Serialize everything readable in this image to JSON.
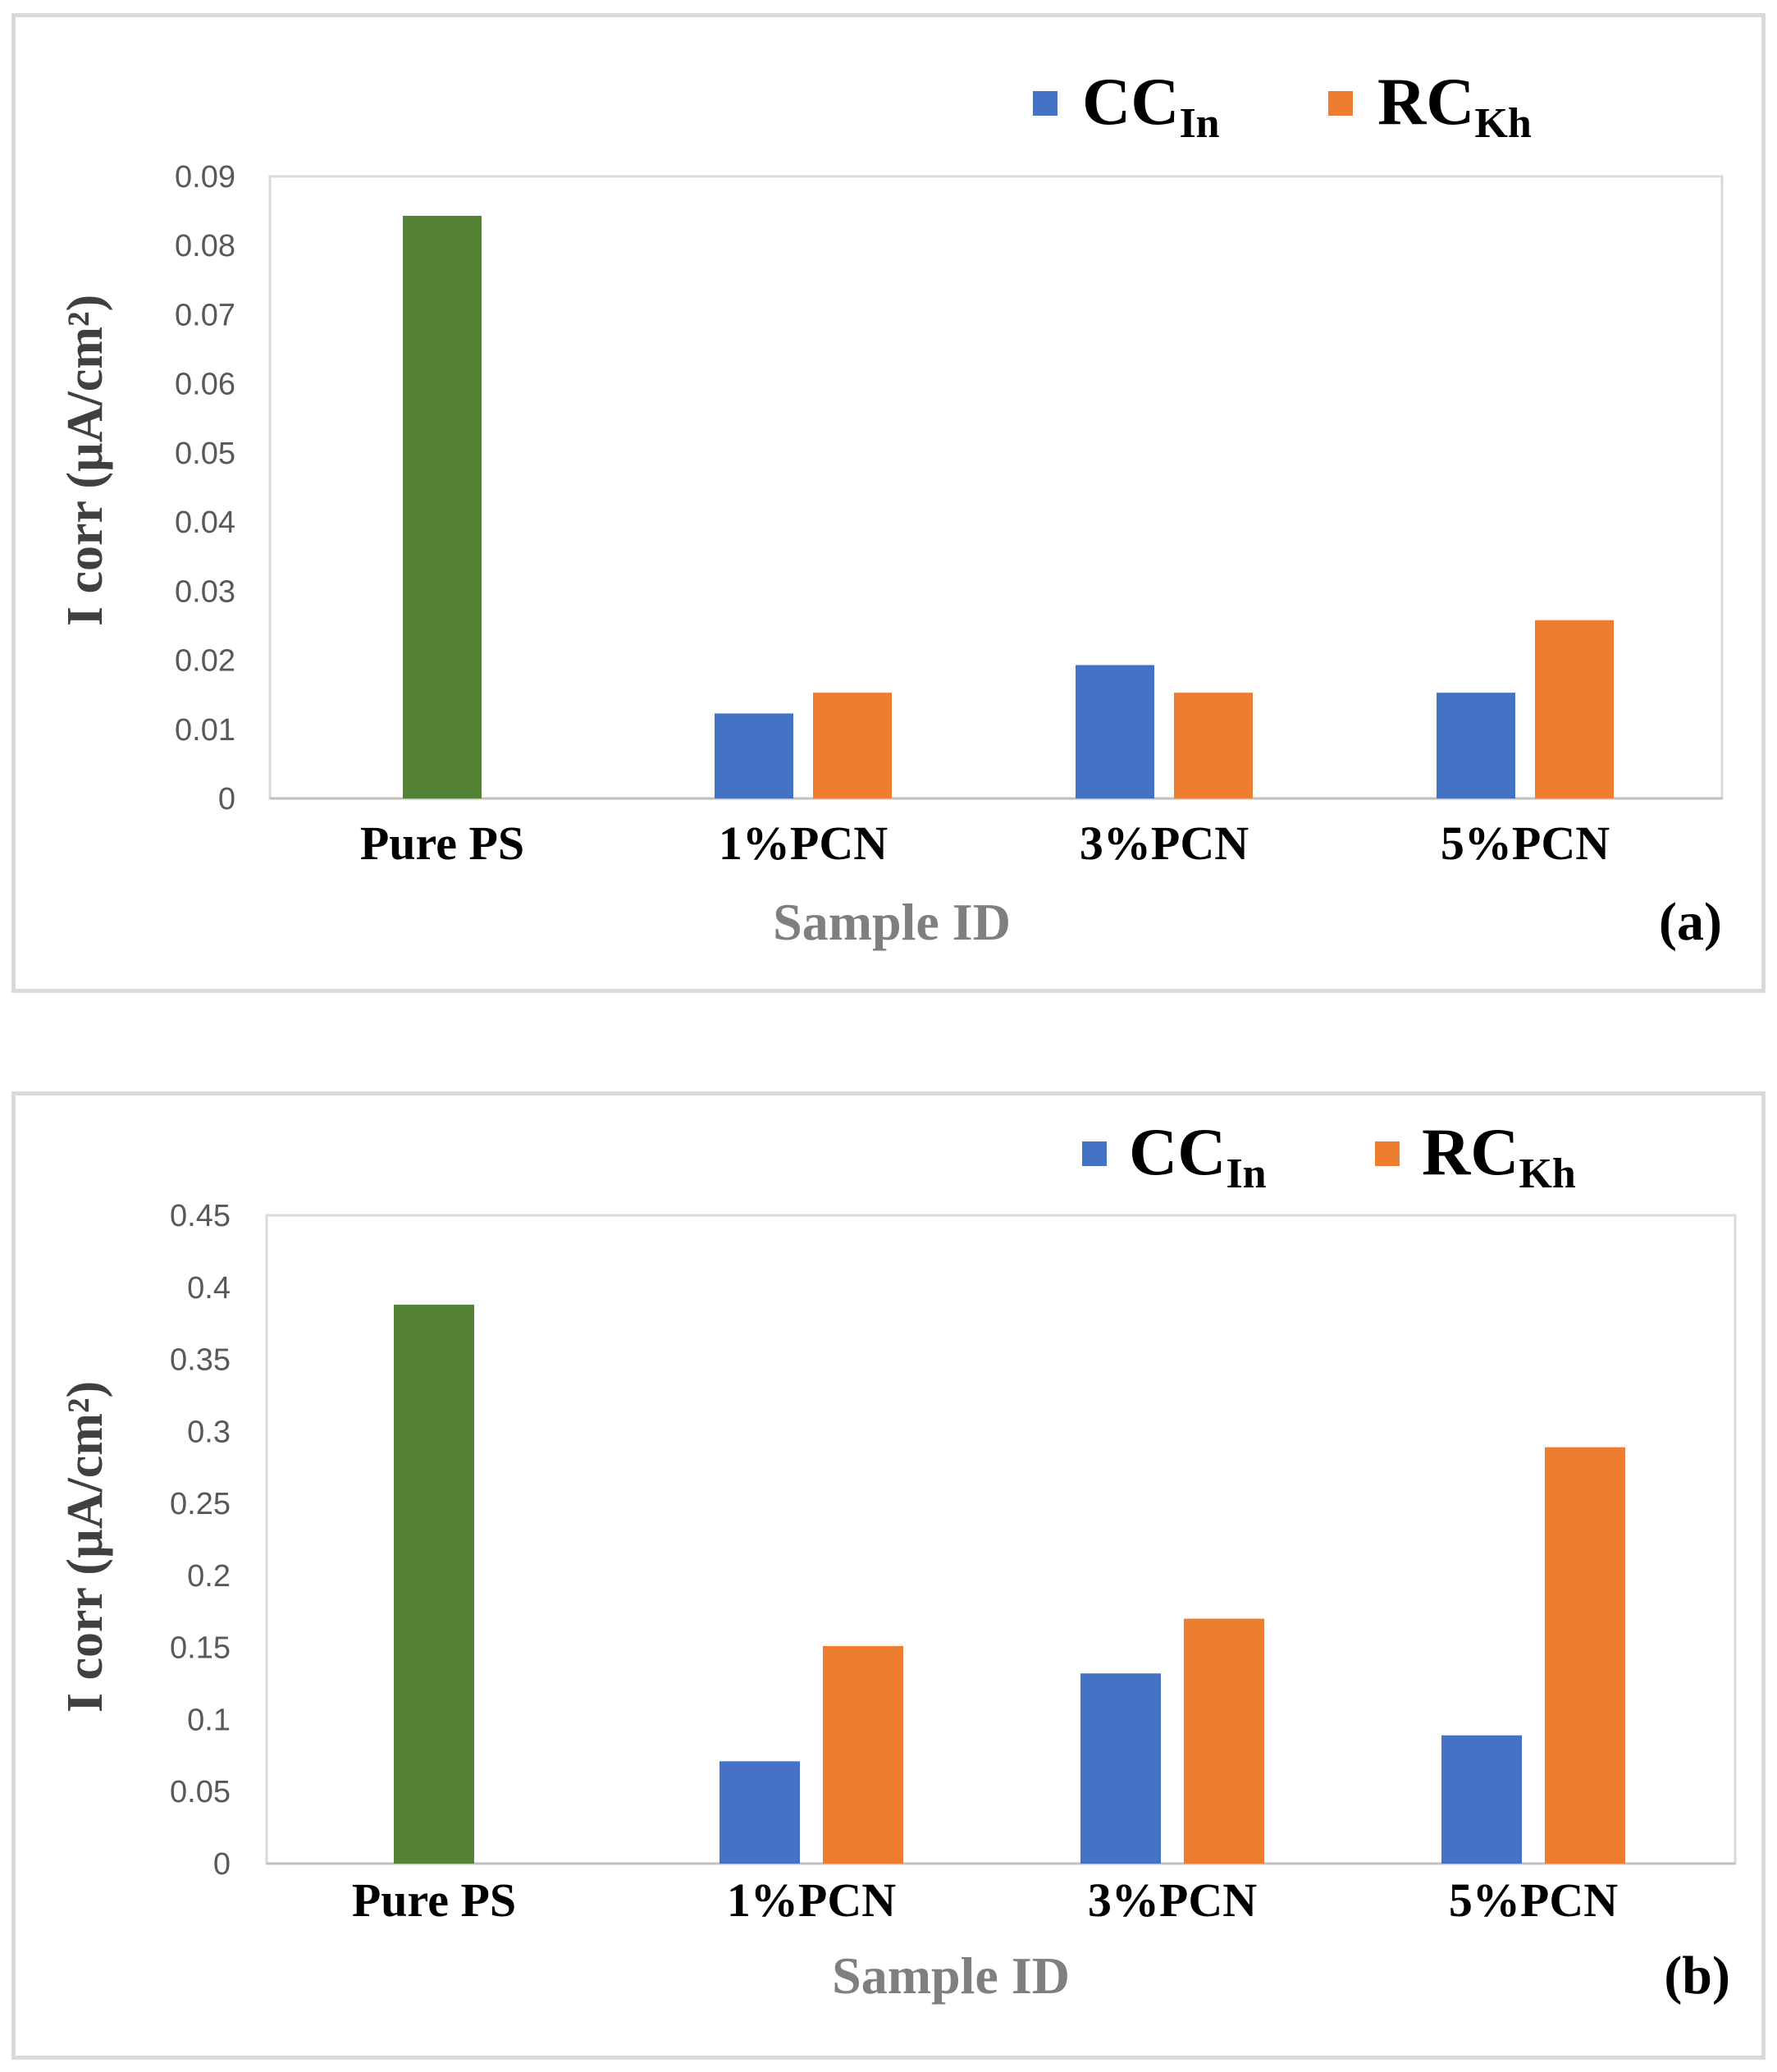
{
  "colors": {
    "pure": "#548235",
    "series_cc": "#4472C4",
    "series_rc": "#ED7D31",
    "plot_border": "#d9d9d9",
    "axis": "#bfbfbf"
  },
  "chart_data": [
    {
      "type": "bar",
      "panel_label": "(a)",
      "xlabel": "Sample ID",
      "ylabel": "I corr (µA/cm²)",
      "ylim": [
        0,
        0.09
      ],
      "yticks": [
        "0",
        "0.01",
        "0.02",
        "0.03",
        "0.04",
        "0.05",
        "0.06",
        "0.07",
        "0.08",
        "0.09"
      ],
      "grid": false,
      "legend_position": "top-right",
      "categories": [
        "Pure PS",
        "1%PCN",
        "3%PCN",
        "5%PCN"
      ],
      "reference": {
        "category": "Pure PS",
        "value": 0.0843
      },
      "series": [
        {
          "name": "CC",
          "subscript": "In",
          "values": [
            null,
            0.0123,
            0.0193,
            0.0153
          ]
        },
        {
          "name": "RC",
          "subscript": "Kh",
          "values": [
            null,
            0.0153,
            0.0153,
            0.0258
          ]
        }
      ]
    },
    {
      "type": "bar",
      "panel_label": "(b)",
      "xlabel": "Sample ID",
      "ylabel": "I corr (µA/cm²)",
      "ylim": [
        0,
        0.45
      ],
      "yticks": [
        "0",
        "0.05",
        "0.1",
        "0.15",
        "0.2",
        "0.25",
        "0.3",
        "0.35",
        "0.4",
        "0.45"
      ],
      "grid": false,
      "legend_position": "top-right",
      "categories": [
        "Pure PS",
        "1%PCN",
        "3%PCN",
        "5%PCN"
      ],
      "reference": {
        "category": "Pure PS",
        "value": 0.388
      },
      "series": [
        {
          "name": "CC",
          "subscript": "In",
          "values": [
            null,
            0.071,
            0.132,
            0.089
          ]
        },
        {
          "name": "RC",
          "subscript": "Kh",
          "values": [
            null,
            0.151,
            0.17,
            0.289
          ]
        }
      ]
    }
  ]
}
